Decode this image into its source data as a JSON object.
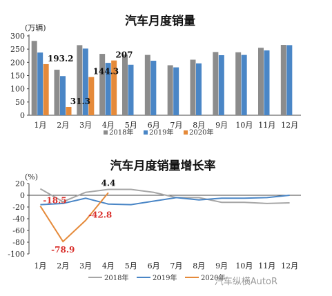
{
  "watermark": "汽车纵横AutoR",
  "colors": {
    "s2018": "#8c8c8c",
    "s2019": "#4a86c6",
    "s2020": "#e58a3a",
    "axis": "#444444",
    "neg": "#d9302c"
  },
  "chart_data": [
    {
      "type": "bar",
      "title": "汽车月度销量",
      "unit": "(万辆)",
      "categories": [
        "1月",
        "2月",
        "3月",
        "4月",
        "5月",
        "6月",
        "7月",
        "8月",
        "9月",
        "10月",
        "11月",
        "12月"
      ],
      "yticks": [
        "0",
        "50",
        "100",
        "150",
        "200",
        "250",
        "300"
      ],
      "ylim": [
        0,
        300
      ],
      "legend_position": "bottom",
      "series": [
        {
          "name": "2018年",
          "color": "#8c8c8c",
          "values": [
            281,
            172,
            265,
            232,
            229,
            228,
            189,
            210,
            239,
            238,
            255,
            266
          ]
        },
        {
          "name": "2019年",
          "color": "#4a86c6",
          "values": [
            237,
            148,
            252,
            198,
            191,
            206,
            181,
            196,
            227,
            228,
            245,
            265
          ]
        },
        {
          "name": "2020年",
          "color": "#e58a3a",
          "values": [
            193.2,
            31.3,
            144.3,
            207,
            null,
            null,
            null,
            null,
            null,
            null,
            null,
            null
          ]
        }
      ],
      "data_labels": [
        {
          "series": 2,
          "index": 0,
          "text": "193.2"
        },
        {
          "series": 2,
          "index": 1,
          "text": "31.3"
        },
        {
          "series": 2,
          "index": 2,
          "text": "144.3"
        },
        {
          "series": 2,
          "index": 3,
          "text": "207"
        }
      ]
    },
    {
      "type": "line",
      "title": "汽车月度销量增长率",
      "unit": "(%)",
      "categories": [
        "1月",
        "2月",
        "3月",
        "4月",
        "5月",
        "6月",
        "7月",
        "8月",
        "9月",
        "10月",
        "11月",
        "12月"
      ],
      "yticks": [
        "20",
        "0",
        "-20",
        "-40",
        "-60",
        "-80",
        "-100"
      ],
      "ylim": [
        -100,
        20
      ],
      "legend_position": "bottom",
      "series": [
        {
          "name": "2018年",
          "color": "#a6a6a6",
          "values": [
            11,
            -11,
            5,
            10,
            10,
            5,
            -4,
            -4,
            -12,
            -12,
            -14,
            -13
          ]
        },
        {
          "name": "2019年",
          "color": "#4a86c6",
          "values": [
            -16,
            -14,
            -5,
            -15,
            -16,
            -10,
            -4,
            -8,
            -5,
            -5,
            -4,
            0
          ]
        },
        {
          "name": "2020年",
          "color": "#e58a3a",
          "values": [
            -18.5,
            -78.9,
            -42.8,
            4.4,
            null,
            null,
            null,
            null,
            null,
            null,
            null,
            null
          ]
        }
      ],
      "data_labels": [
        {
          "series": 2,
          "index": 0,
          "text": "-18.5",
          "color": "#d9302c"
        },
        {
          "series": 2,
          "index": 1,
          "text": "-78.9",
          "color": "#d9302c"
        },
        {
          "series": 2,
          "index": 2,
          "text": "-42.8",
          "color": "#d9302c"
        },
        {
          "series": 2,
          "index": 3,
          "text": "4.4",
          "color": "#111111"
        }
      ],
      "legend": [
        "2018年",
        "2019年",
        "2020年"
      ]
    }
  ]
}
